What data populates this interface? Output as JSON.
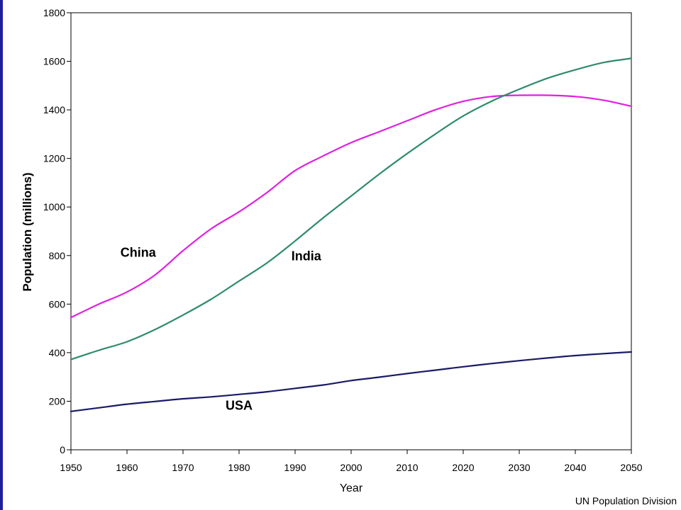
{
  "chart_data": {
    "type": "line",
    "xlabel": "Year",
    "ylabel": "Population (millions)",
    "xlim": [
      1950,
      2050
    ],
    "ylim": [
      0,
      1800
    ],
    "xticks": [
      1950,
      1960,
      1970,
      1980,
      1990,
      2000,
      2010,
      2020,
      2030,
      2040,
      2050
    ],
    "yticks": [
      0,
      200,
      400,
      600,
      800,
      1000,
      1200,
      1400,
      1600,
      1800
    ],
    "grid": false,
    "legend": "none (inline series labels)",
    "series": [
      {
        "name": "China",
        "color": "#e020e0",
        "x": [
          1950,
          1955,
          1960,
          1965,
          1970,
          1975,
          1980,
          1985,
          1990,
          1995,
          2000,
          2005,
          2010,
          2015,
          2020,
          2025,
          2030,
          2035,
          2040,
          2045,
          2050
        ],
        "y": [
          545,
          600,
          650,
          720,
          820,
          910,
          980,
          1060,
          1150,
          1210,
          1265,
          1310,
          1355,
          1400,
          1435,
          1455,
          1460,
          1460,
          1455,
          1440,
          1415
        ]
      },
      {
        "name": "India",
        "color": "#2e8b6e",
        "x": [
          1950,
          1955,
          1960,
          1965,
          1970,
          1975,
          1980,
          1985,
          1990,
          1995,
          2000,
          2005,
          2010,
          2015,
          2020,
          2025,
          2030,
          2035,
          2040,
          2045,
          2050
        ],
        "y": [
          372,
          410,
          445,
          495,
          555,
          620,
          695,
          770,
          860,
          955,
          1045,
          1135,
          1220,
          1300,
          1375,
          1435,
          1485,
          1530,
          1565,
          1595,
          1612
        ]
      },
      {
        "name": "USA",
        "color": "#1a1a66",
        "x": [
          1950,
          1955,
          1960,
          1965,
          1970,
          1975,
          1980,
          1985,
          1990,
          1995,
          2000,
          2005,
          2010,
          2015,
          2020,
          2025,
          2030,
          2035,
          2040,
          2045,
          2050
        ],
        "y": [
          158,
          173,
          188,
          199,
          210,
          218,
          228,
          239,
          253,
          267,
          285,
          299,
          314,
          328,
          342,
          355,
          367,
          378,
          388,
          396,
          403
        ]
      }
    ],
    "annotations": [
      {
        "text": "China",
        "x": 1962,
        "y": 795
      },
      {
        "text": "India",
        "x": 1992,
        "y": 780
      },
      {
        "text": "USA",
        "x": 1980,
        "y": 165
      }
    ]
  },
  "source_note": "UN Population Division"
}
